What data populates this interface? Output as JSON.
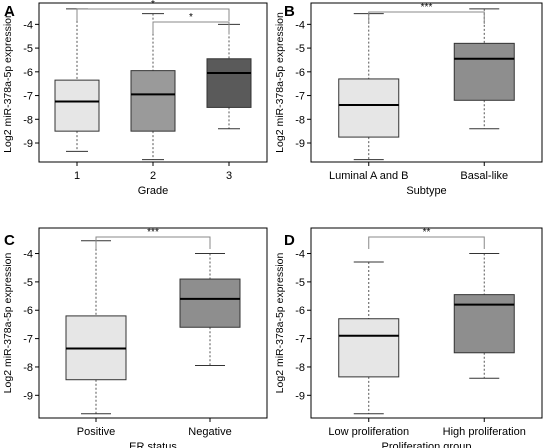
{
  "chart_data": [
    {
      "panel": "A",
      "type": "box",
      "xlabel": "Grade",
      "ylabel": "Log2 miR-378a-5p expression",
      "categories": [
        "1",
        "2",
        "3"
      ],
      "yticks": [
        "-4",
        "-5",
        "-6",
        "-7",
        "-8",
        "-9"
      ],
      "ylim": [
        -9.8,
        -3.1
      ],
      "boxes": [
        {
          "min": -9.35,
          "q1": -8.5,
          "median": -7.25,
          "q3": -6.35,
          "max": -3.35,
          "fill": "#e6e6e6"
        },
        {
          "min": -9.7,
          "q1": -8.5,
          "median": -6.95,
          "q3": -5.95,
          "max": -3.55,
          "fill": "#9a9a9a"
        },
        {
          "min": -8.4,
          "q1": -7.5,
          "median": -6.05,
          "q3": -5.45,
          "max": -4.0,
          "fill": "#5a5a5a"
        }
      ],
      "brackets": [
        {
          "from": 0,
          "to": 2,
          "label": "*"
        },
        {
          "from": 1,
          "to": 2,
          "label": "*"
        }
      ]
    },
    {
      "panel": "B",
      "type": "box",
      "xlabel": "Subtype",
      "ylabel": "Log2 miR-378a-5p expression",
      "categories": [
        "Luminal A and B",
        "Basal-like"
      ],
      "yticks": [
        "-4",
        "-5",
        "-6",
        "-7",
        "-8",
        "-9"
      ],
      "ylim": [
        -9.8,
        -3.1
      ],
      "boxes": [
        {
          "min": -9.7,
          "q1": -8.75,
          "median": -7.4,
          "q3": -6.3,
          "max": -3.55,
          "fill": "#e6e6e6"
        },
        {
          "min": -8.4,
          "q1": -7.2,
          "median": -5.45,
          "q3": -4.8,
          "max": -3.35,
          "fill": "#8e8e8e"
        }
      ],
      "brackets": [
        {
          "from": 0,
          "to": 1,
          "label": "***"
        }
      ]
    },
    {
      "panel": "C",
      "type": "box",
      "xlabel": "ER status",
      "ylabel": "Log2 miR-378a-5p expression",
      "categories": [
        "Positive",
        "Negative"
      ],
      "yticks": [
        "-4",
        "-5",
        "-6",
        "-7",
        "-8",
        "-9"
      ],
      "ylim": [
        -9.8,
        -3.1
      ],
      "boxes": [
        {
          "min": -9.65,
          "q1": -8.45,
          "median": -7.35,
          "q3": -6.2,
          "max": -3.55,
          "fill": "#e6e6e6"
        },
        {
          "min": -7.95,
          "q1": -6.6,
          "median": -5.6,
          "q3": -4.9,
          "max": -4.0,
          "fill": "#8e8e8e"
        }
      ],
      "brackets": [
        {
          "from": 0,
          "to": 1,
          "label": "***"
        }
      ]
    },
    {
      "panel": "D",
      "type": "box",
      "xlabel": "Proliferation group",
      "ylabel": "Log2 miR-378a-5p expression",
      "categories": [
        "Low proliferation",
        "High proliferation"
      ],
      "yticks": [
        "-4",
        "-5",
        "-6",
        "-7",
        "-8",
        "-9"
      ],
      "ylim": [
        -9.8,
        -3.1
      ],
      "boxes": [
        {
          "min": -9.65,
          "q1": -8.35,
          "median": -6.9,
          "q3": -6.3,
          "max": -4.3,
          "fill": "#e6e6e6"
        },
        {
          "min": -8.4,
          "q1": -7.5,
          "median": -5.8,
          "q3": -5.45,
          "max": -4.0,
          "fill": "#8e8e8e"
        }
      ],
      "brackets": [
        {
          "from": 0,
          "to": 1,
          "label": "**"
        }
      ]
    }
  ]
}
